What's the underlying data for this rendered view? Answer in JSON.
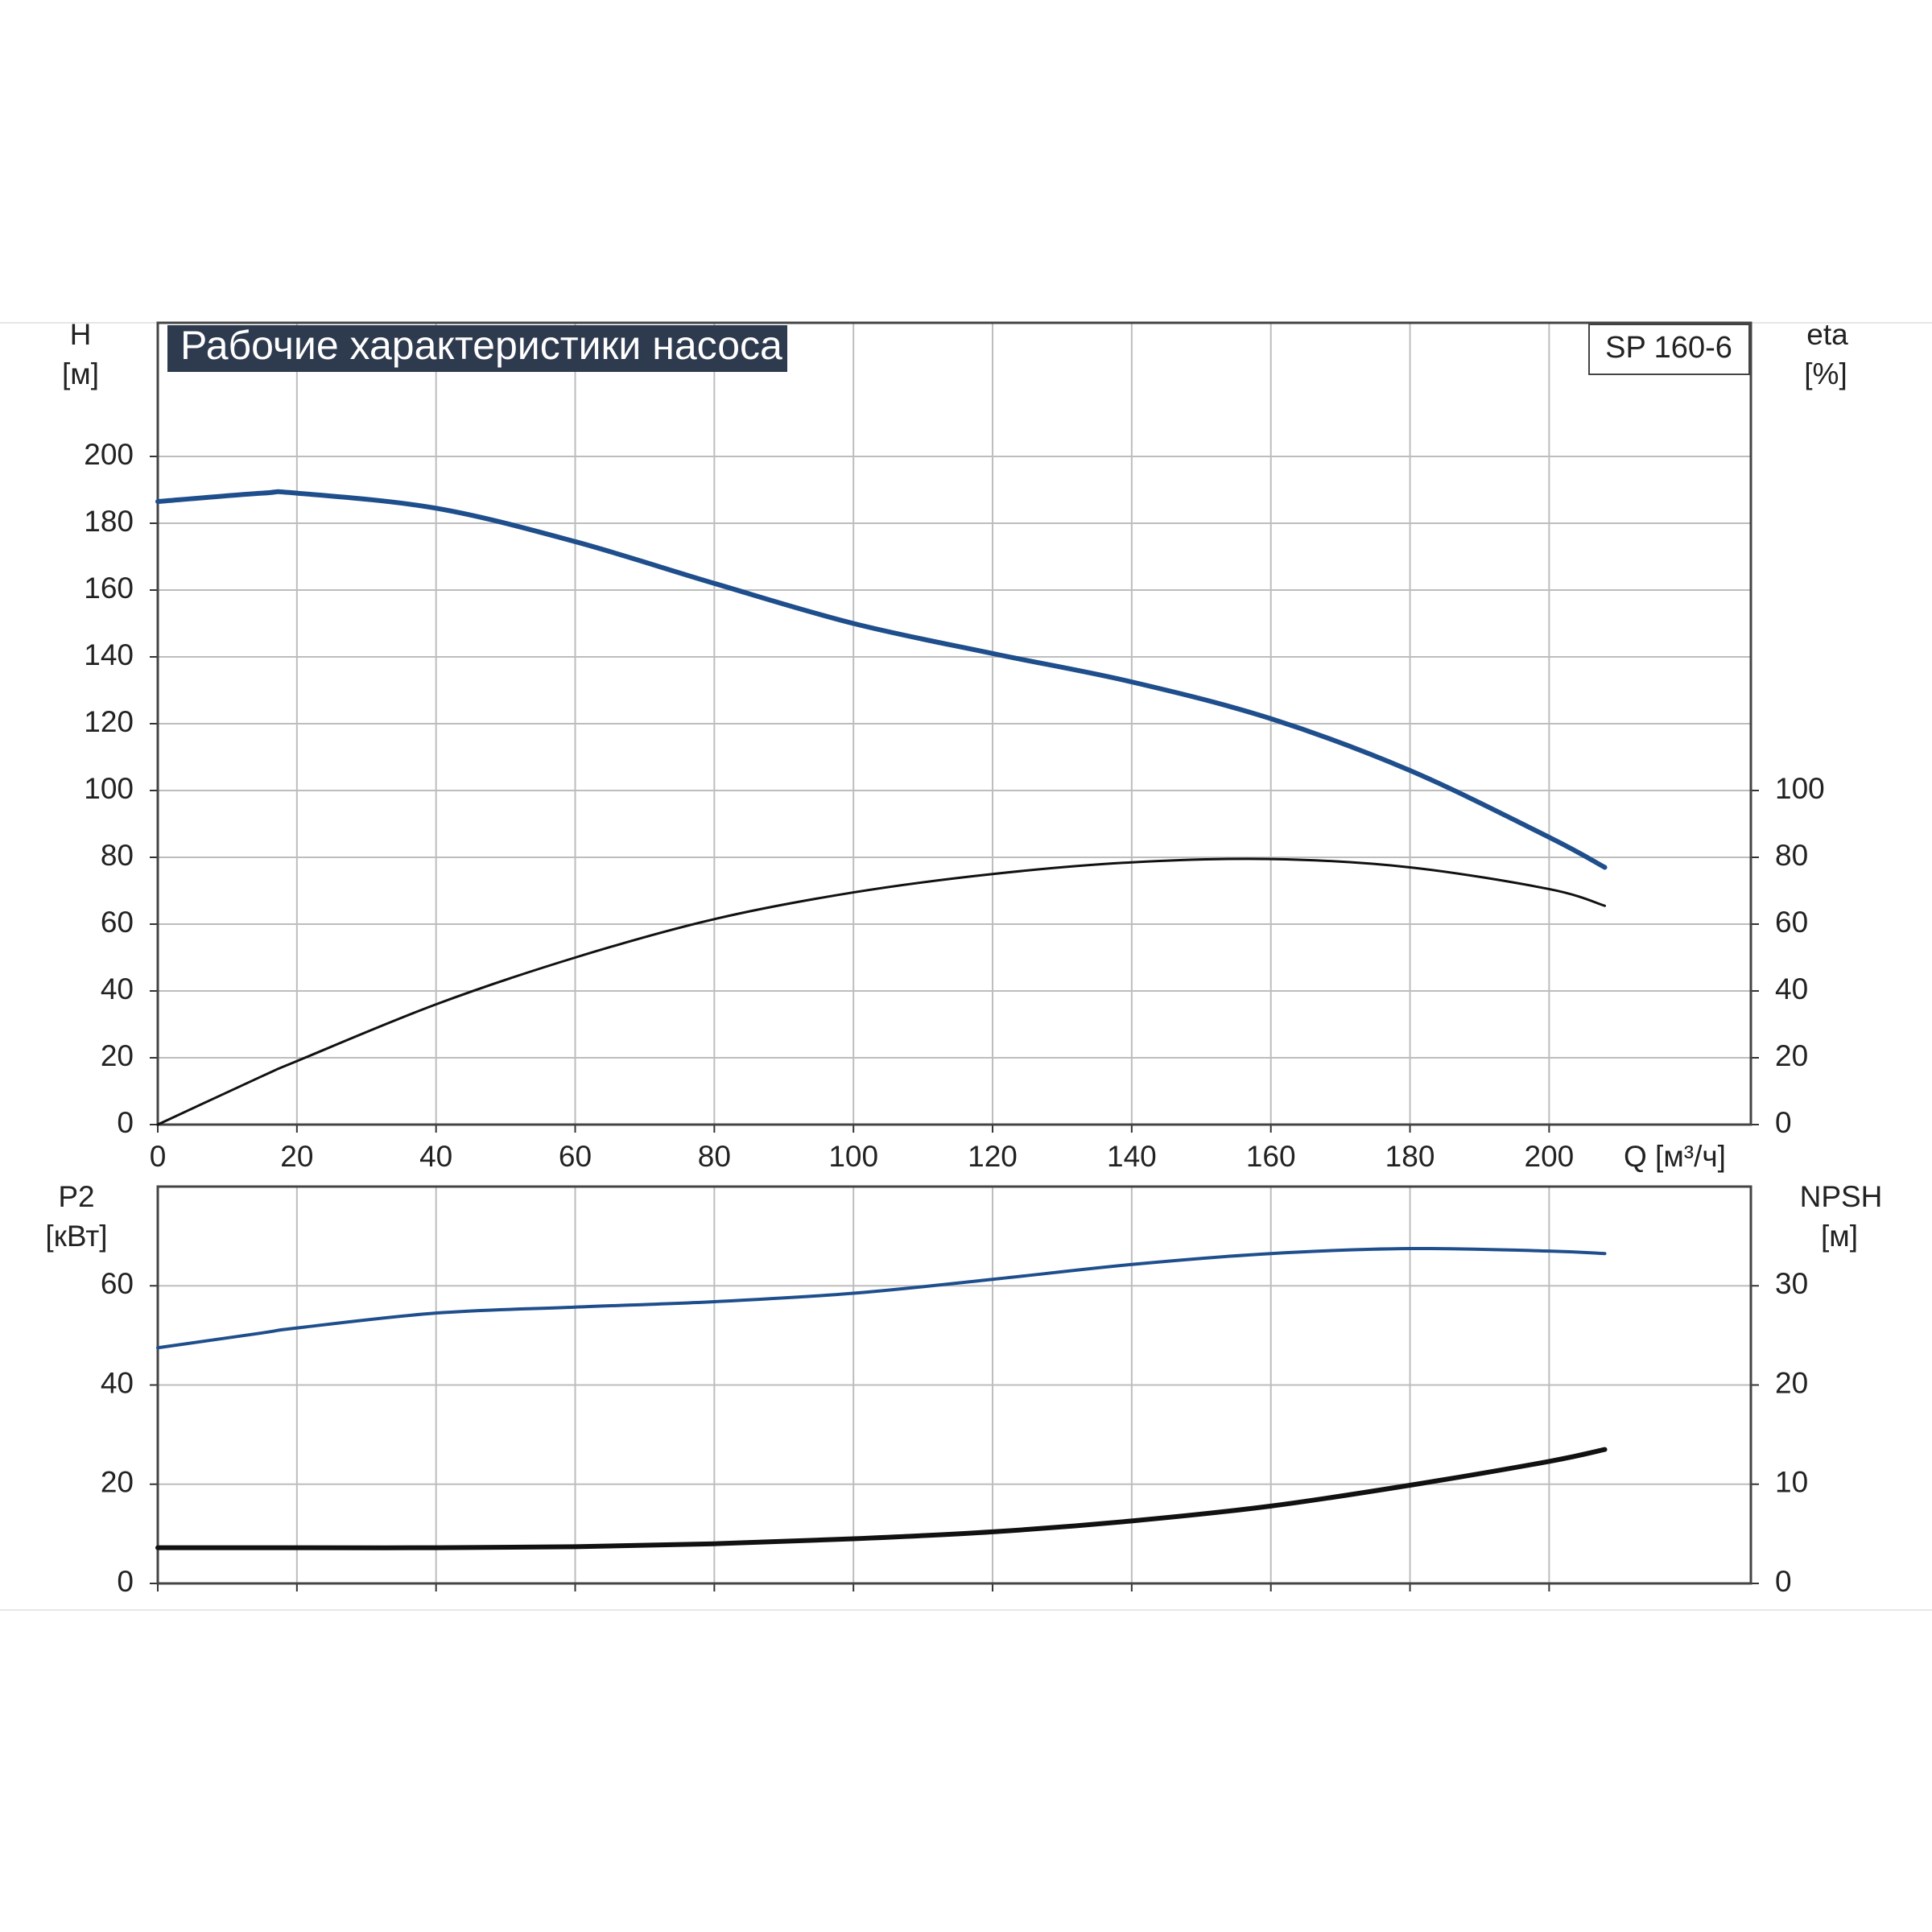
{
  "chart_data": [
    {
      "type": "line",
      "title": "Рабочие характеристики насоса",
      "model": "SP 160-6",
      "ylabel": "H",
      "yunit": "[м]",
      "y2label": "eta",
      "y2unit": "[%]",
      "xlabel": "Q [м³/ч]",
      "x": [
        0,
        15,
        20,
        40,
        60,
        80,
        100,
        120,
        140,
        160,
        180,
        200,
        208
      ],
      "xlim": [
        0,
        229
      ],
      "xticks": [
        0,
        20,
        40,
        60,
        80,
        100,
        120,
        140,
        160,
        180,
        200
      ],
      "ylim": [
        0,
        240
      ],
      "yticks": [
        0,
        20,
        40,
        60,
        80,
        100,
        120,
        140,
        160,
        180,
        200
      ],
      "y2lim": [
        0,
        240
      ],
      "y2ticks": [
        0,
        20,
        40,
        60,
        80,
        100
      ],
      "grid": true,
      "series": [
        {
          "color": "#1f4e8c",
          "values": [
            186.5,
            189,
            189,
            184.5,
            174.5,
            162,
            150,
            141,
            132.5,
            121.5,
            106,
            86,
            77
          ]
        },
        {
          "color": "#111111",
          "axis": "y2",
          "values": [
            0,
            14.5,
            19,
            36,
            50,
            61.5,
            69.5,
            75,
            78.5,
            79.5,
            77,
            70.5,
            65.5
          ]
        }
      ]
    },
    {
      "type": "line",
      "ylabel": "P2",
      "yunit": "[кВт]",
      "y2label": "NPSH",
      "y2unit": "[м]",
      "x": [
        0,
        15,
        20,
        40,
        60,
        80,
        100,
        120,
        140,
        160,
        180,
        200,
        208
      ],
      "xlim": [
        0,
        229
      ],
      "xticks": [
        0,
        20,
        40,
        60,
        80,
        100,
        120,
        140,
        160,
        180,
        200
      ],
      "ylim": [
        0,
        80
      ],
      "yticks": [
        0,
        20,
        40,
        60
      ],
      "y2lim": [
        0,
        40
      ],
      "y2ticks": [
        0,
        10,
        20,
        30
      ],
      "grid": true,
      "series": [
        {
          "color": "#1f4e8c",
          "values": [
            47.5,
            50.5,
            51.5,
            54.5,
            55.7,
            56.8,
            58.5,
            61.3,
            64.3,
            66.5,
            67.5,
            67,
            66.5
          ]
        },
        {
          "color": "#111111",
          "axis": "y2",
          "values": [
            3.6,
            3.6,
            3.6,
            3.6,
            3.7,
            4,
            4.5,
            5.2,
            6.3,
            7.8,
            9.9,
            12.3,
            13.5
          ]
        }
      ]
    }
  ]
}
